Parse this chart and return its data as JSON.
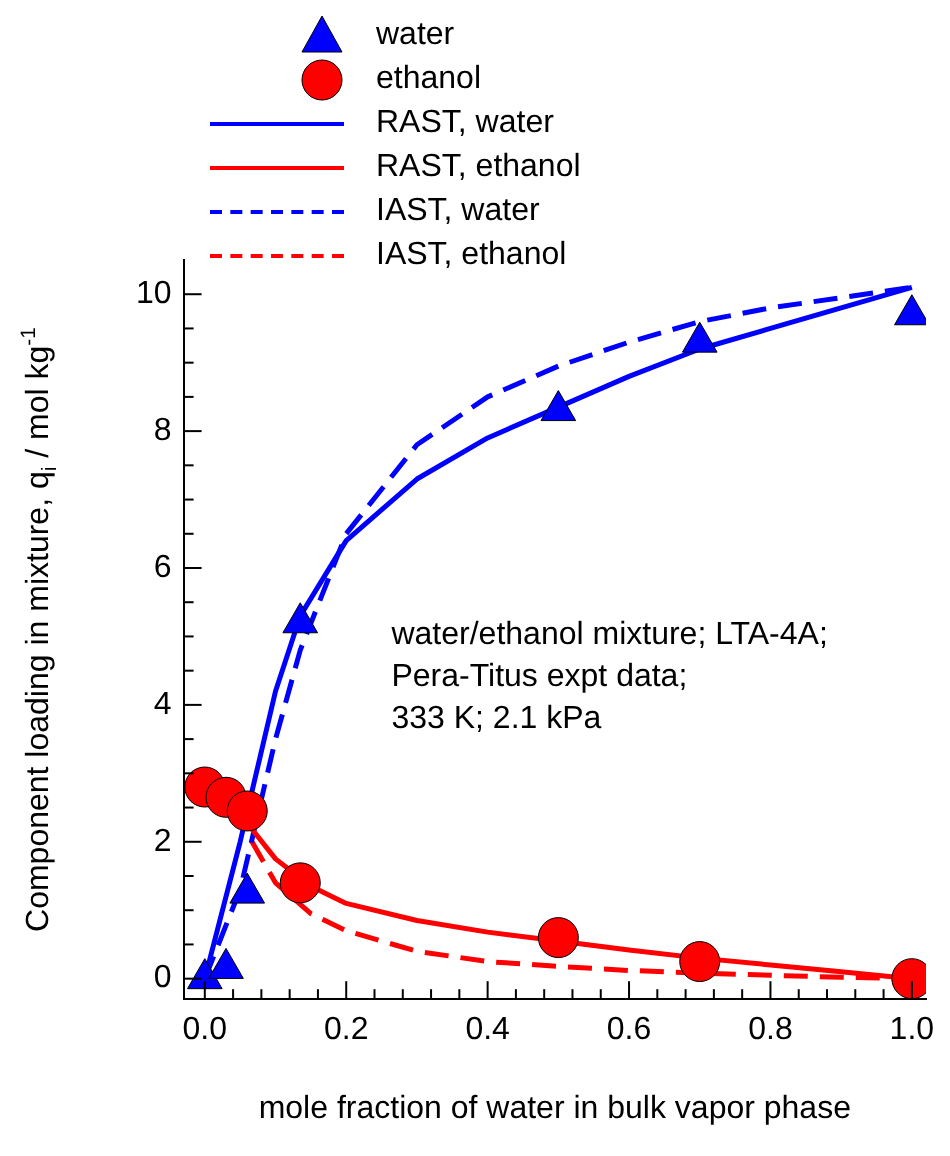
{
  "chart_data": {
    "type": "line",
    "xlabel": "mole fraction of water in bulk vapor phase",
    "ylabel": "Component loading in mixture, q$_{i}$ / mol kg$^{-1}$",
    "annotations": [
      "water/ethanol mixture; LTA-4A;",
      "Pera-Titus expt data;",
      "333 K; 2.1 kPa"
    ],
    "legend": "top left",
    "xlim": [
      -0.03,
      1.02
    ],
    "ylim": [
      -0.3,
      10.5
    ],
    "xticks": [
      {
        "value": 0,
        "label": "0.0"
      },
      {
        "value": 0.04,
        "label": null
      },
      {
        "value": 0.08,
        "label": null
      },
      {
        "value": 0.12,
        "label": null
      },
      {
        "value": 0.16,
        "label": null
      },
      {
        "value": 0.2,
        "label": "0.2"
      },
      {
        "value": 0.24,
        "label": null
      },
      {
        "value": 0.28,
        "label": null
      },
      {
        "value": 0.32,
        "label": null
      },
      {
        "value": 0.36,
        "label": null
      },
      {
        "value": 0.4,
        "label": "0.4"
      },
      {
        "value": 0.44,
        "label": null
      },
      {
        "value": 0.48,
        "label": null
      },
      {
        "value": 0.52,
        "label": null
      },
      {
        "value": 0.56,
        "label": null
      },
      {
        "value": 0.6,
        "label": "0.6"
      },
      {
        "value": 0.64,
        "label": null
      },
      {
        "value": 0.68,
        "label": null
      },
      {
        "value": 0.72,
        "label": null
      },
      {
        "value": 0.76,
        "label": null
      },
      {
        "value": 0.8,
        "label": "0.8"
      },
      {
        "value": 0.84,
        "label": null
      },
      {
        "value": 0.88,
        "label": null
      },
      {
        "value": 0.92,
        "label": null
      },
      {
        "value": 0.96,
        "label": null
      },
      {
        "value": 1,
        "label": "1.0"
      }
    ],
    "yticks": [
      0,
      {
        "value": 0.5,
        "label": null
      },
      {
        "value": 1,
        "label": null
      },
      {
        "value": 1.5,
        "label": null
      },
      2,
      {
        "value": 2.5,
        "label": null
      },
      {
        "value": 3,
        "label": null
      },
      {
        "value": 3.5,
        "label": null
      },
      4,
      {
        "value": 4.5,
        "label": null
      },
      {
        "value": 5,
        "label": null
      },
      {
        "value": 5.5,
        "label": null
      },
      6,
      {
        "value": 6.5,
        "label": null
      },
      {
        "value": 7,
        "label": null
      },
      {
        "value": 7.5,
        "label": null
      },
      8,
      {
        "value": 8.5,
        "label": null
      },
      {
        "value": 9,
        "label": null
      },
      {
        "value": 9.5,
        "label": null
      },
      10
    ],
    "series": [
      {
        "name": "water",
        "type": "scatter",
        "marker": "triangle",
        "color": "#0000ff",
        "x": [
          0,
          0.03,
          0.06,
          0.135,
          0.5,
          0.7,
          1.0
        ],
        "values": [
          0,
          0.15,
          1.25,
          5.2,
          8.3,
          9.3,
          9.7
        ]
      },
      {
        "name": "ethanol",
        "type": "scatter",
        "marker": "circle",
        "color": "#ff0000",
        "x": [
          0,
          0.03,
          0.06,
          0.135,
          0.5,
          0.7,
          1.0
        ],
        "values": [
          2.8,
          2.65,
          2.45,
          1.4,
          0.6,
          0.25,
          0.0
        ]
      },
      {
        "name": "RAST, water",
        "type": "line",
        "line_style": "solid",
        "color": "#0000ff",
        "x": [
          0,
          0.05,
          0.1,
          0.135,
          0.2,
          0.3,
          0.4,
          0.5,
          0.6,
          0.7,
          0.8,
          0.9,
          1.0
        ],
        "values": [
          0,
          2,
          4.2,
          5.3,
          6.4,
          7.3,
          7.9,
          8.35,
          8.8,
          9.2,
          9.5,
          9.8,
          10.1
        ]
      },
      {
        "name": "RAST, ethanol",
        "type": "line",
        "line_style": "solid",
        "color": "#ff0000",
        "x": [
          0,
          0.05,
          0.1,
          0.15,
          0.2,
          0.3,
          0.4,
          0.5,
          0.6,
          0.7,
          0.8,
          0.9,
          1.0
        ],
        "values": [
          2.8,
          2.4,
          1.75,
          1.35,
          1.1,
          0.85,
          0.68,
          0.55,
          0.42,
          0.3,
          0.2,
          0.1,
          0
        ]
      },
      {
        "name": "IAST, water",
        "type": "line",
        "line_style": "dashed",
        "color": "#0000ff",
        "x": [
          0,
          0.05,
          0.1,
          0.135,
          0.2,
          0.3,
          0.4,
          0.5,
          0.6,
          0.7,
          0.8,
          0.9,
          1.0
        ],
        "values": [
          0,
          1.3,
          3.5,
          4.8,
          6.5,
          7.8,
          8.5,
          8.95,
          9.3,
          9.6,
          9.8,
          9.95,
          10.1
        ]
      },
      {
        "name": "IAST, ethanol",
        "type": "line",
        "line_style": "dashed",
        "color": "#ff0000",
        "x": [
          0,
          0.05,
          0.1,
          0.15,
          0.2,
          0.3,
          0.4,
          0.5,
          0.6,
          0.7,
          0.8,
          0.9,
          1.0
        ],
        "values": [
          2.8,
          2.3,
          1.4,
          0.95,
          0.7,
          0.4,
          0.25,
          0.18,
          0.12,
          0.08,
          0.05,
          0.02,
          0
        ]
      }
    ]
  }
}
